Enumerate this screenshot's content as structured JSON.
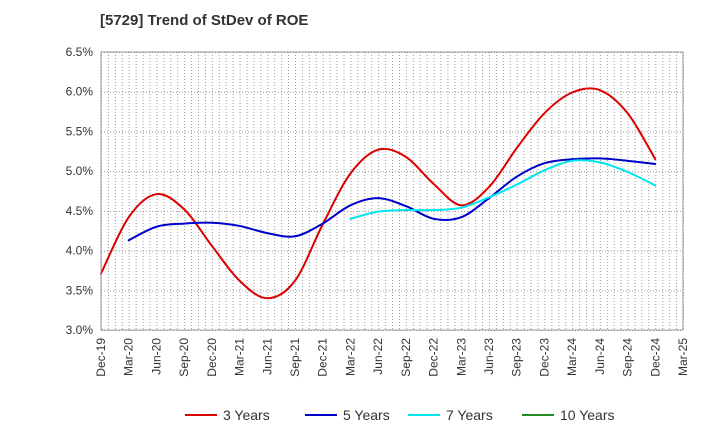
{
  "chart_data": {
    "type": "line",
    "title": "[5729]  Trend of StDev of ROE",
    "xlabel": "",
    "ylabel": "",
    "x_ticks": [
      "Dec-19",
      "Mar-20",
      "Jun-20",
      "Sep-20",
      "Dec-20",
      "Mar-21",
      "Jun-21",
      "Sep-21",
      "Dec-21",
      "Mar-22",
      "Jun-22",
      "Sep-22",
      "Dec-22",
      "Mar-23",
      "Jun-23",
      "Sep-23",
      "Dec-23",
      "Mar-24",
      "Jun-24",
      "Sep-24",
      "Dec-24",
      "Mar-25"
    ],
    "y_ticks": [
      "3.0%",
      "3.5%",
      "4.0%",
      "4.5%",
      "5.0%",
      "5.5%",
      "6.0%",
      "6.5%"
    ],
    "ylim": [
      3.0,
      6.5
    ],
    "y_unit": "%",
    "grid": true,
    "legend_position": "bottom",
    "series": [
      {
        "name": "3 Years",
        "color": "#dd0000",
        "x": [
          "Dec-19",
          "Mar-20",
          "Jun-20",
          "Sep-20",
          "Dec-20",
          "Mar-21",
          "Jun-21",
          "Sep-21",
          "Dec-21",
          "Mar-22",
          "Jun-22",
          "Sep-22",
          "Dec-22",
          "Mar-23",
          "Jun-23",
          "Sep-23",
          "Dec-23",
          "Mar-24",
          "Jun-24",
          "Sep-24",
          "Dec-24"
        ],
        "values": [
          3.71,
          4.42,
          4.71,
          4.52,
          4.06,
          3.62,
          3.4,
          3.62,
          4.33,
          4.97,
          5.27,
          5.18,
          4.84,
          4.57,
          4.8,
          5.29,
          5.73,
          5.99,
          6.02,
          5.73,
          5.15
        ]
      },
      {
        "name": "5 Years",
        "color": "#0000cc",
        "x": [
          "Mar-20",
          "Jun-20",
          "Sep-20",
          "Dec-20",
          "Mar-21",
          "Jun-21",
          "Sep-21",
          "Dec-21",
          "Mar-22",
          "Jun-22",
          "Sep-22",
          "Dec-22",
          "Mar-23",
          "Jun-23",
          "Sep-23",
          "Dec-23",
          "Mar-24",
          "Jun-24",
          "Sep-24",
          "Dec-24"
        ],
        "values": [
          4.13,
          4.3,
          4.34,
          4.35,
          4.31,
          4.22,
          4.18,
          4.34,
          4.57,
          4.66,
          4.56,
          4.4,
          4.42,
          4.66,
          4.93,
          5.1,
          5.15,
          5.16,
          5.13,
          5.09
        ]
      },
      {
        "name": "7 Years",
        "color": "#00e5ee",
        "x": [
          "Mar-22",
          "Jun-22",
          "Sep-22",
          "Dec-22",
          "Mar-23",
          "Jun-23",
          "Sep-23",
          "Dec-23",
          "Mar-24",
          "Jun-24",
          "Sep-24",
          "Dec-24"
        ],
        "values": [
          4.4,
          4.49,
          4.51,
          4.51,
          4.54,
          4.67,
          4.83,
          5.01,
          5.13,
          5.11,
          4.99,
          4.82
        ]
      },
      {
        "name": "10 Years",
        "color": "#228b22",
        "x": [],
        "values": []
      }
    ]
  }
}
